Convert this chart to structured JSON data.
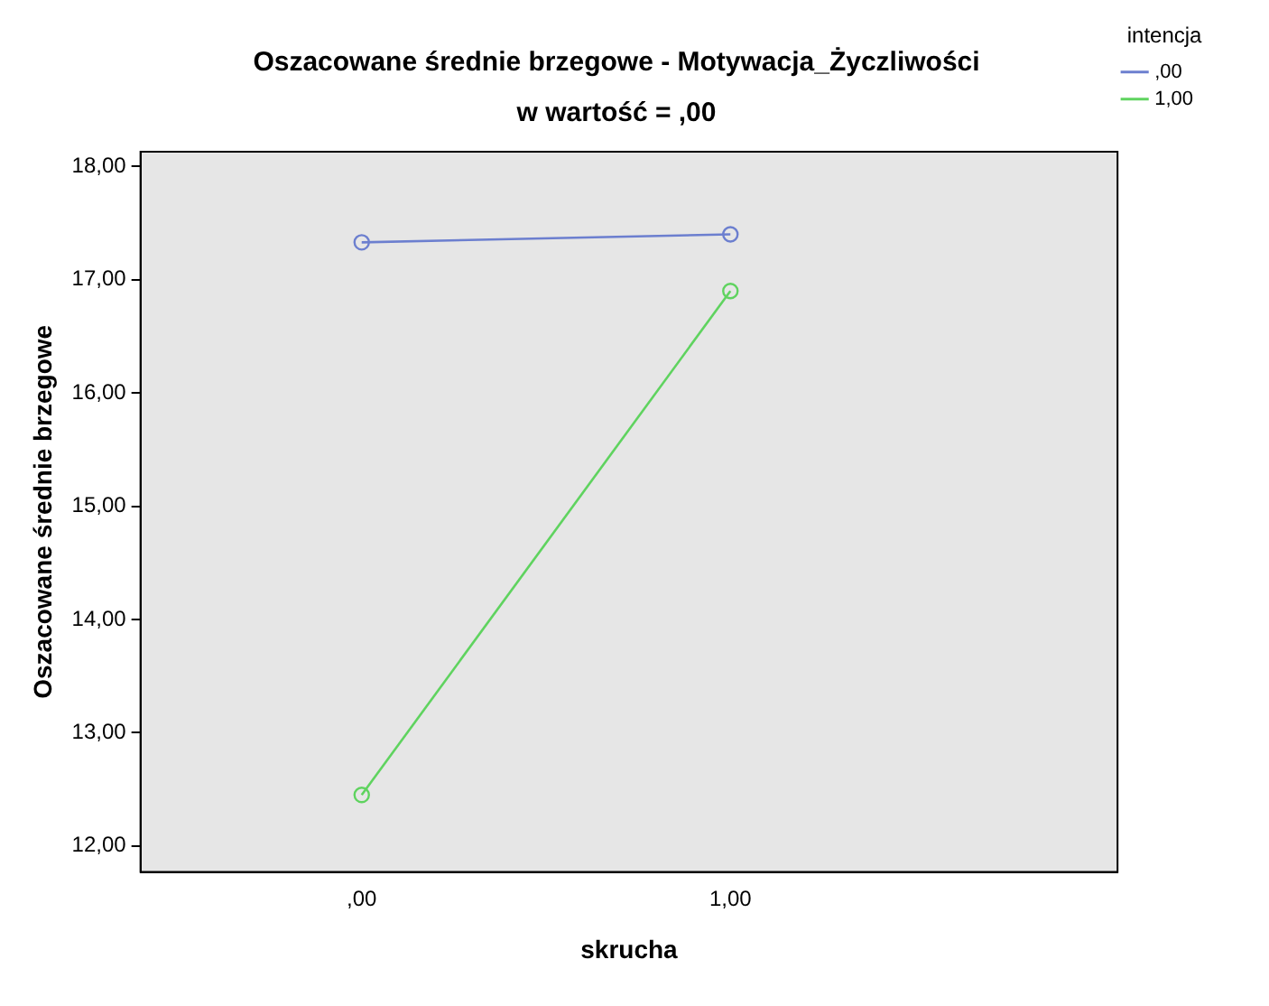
{
  "chart_data": {
    "type": "line",
    "title": "Oszacowane średnie brzegowe - Motywacja_Życzliwości",
    "subtitle": "w wartość = ,00",
    "xlabel": "skrucha",
    "ylabel": "Oszacowane średnie brzegowe",
    "legend_title": "intencja",
    "legend": "top right",
    "marker": "circle",
    "grid": false,
    "x": [
      0,
      1
    ],
    "xlim": [
      -0.6,
      2.05
    ],
    "xticks": [
      {
        "value": 0,
        "label": ",00"
      },
      {
        "value": 1,
        "label": "1,00"
      }
    ],
    "ylim": [
      11.77,
      18.13
    ],
    "yticks": [
      {
        "value": 12,
        "label": "12,00"
      },
      {
        "value": 13,
        "label": "13,00"
      },
      {
        "value": 14,
        "label": "14,00"
      },
      {
        "value": 15,
        "label": "15,00"
      },
      {
        "value": 16,
        "label": "16,00"
      },
      {
        "value": 17,
        "label": "17,00"
      },
      {
        "value": 18,
        "label": "18,00"
      }
    ],
    "series": [
      {
        "name": ",00",
        "color": "#6c7fcf",
        "values": [
          17.33,
          17.4
        ]
      },
      {
        "name": "1,00",
        "color": "#5fd35f",
        "values": [
          12.45,
          16.9
        ]
      }
    ]
  }
}
